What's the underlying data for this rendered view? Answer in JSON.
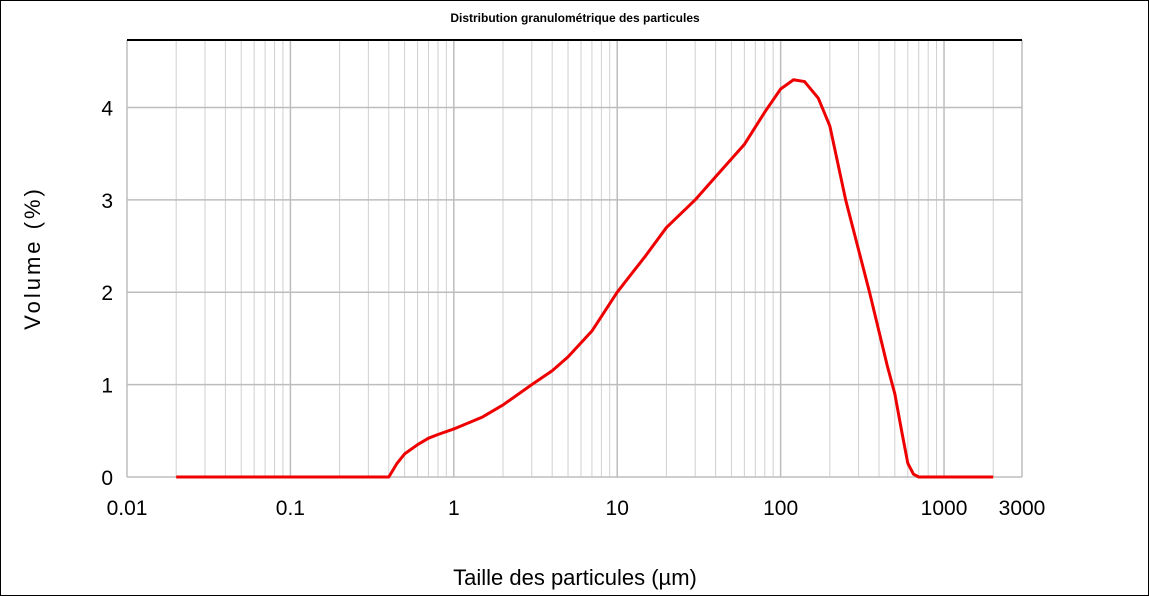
{
  "chart_data": {
    "type": "line",
    "title": "Distribution granulométrique des particules",
    "x_label": "Taille des particules (µm)",
    "y_label": "Volume (%)",
    "x_scale": "log",
    "grid": true,
    "xlim": [
      0.01,
      3000
    ],
    "xticks": [
      0.01,
      0.1,
      1,
      10,
      100,
      1000,
      3000
    ],
    "ylim": [
      0,
      4.73
    ],
    "yticks": [
      0,
      1,
      2,
      3,
      4
    ],
    "x": [
      0.02,
      0.4,
      0.45,
      0.5,
      0.6,
      0.7,
      0.8,
      1,
      1.5,
      2,
      3,
      4,
      5,
      7,
      10,
      15,
      20,
      30,
      40,
      60,
      80,
      100,
      120,
      140,
      170,
      200,
      250,
      350,
      450,
      500,
      550,
      600,
      650,
      700,
      1000,
      2000
    ],
    "series": [
      {
        "name": "Volume",
        "color": "#ee0000",
        "values": [
          0,
          0,
          0.15,
          0.25,
          0.35,
          0.42,
          0.46,
          0.52,
          0.65,
          0.78,
          1.0,
          1.15,
          1.3,
          1.58,
          2.0,
          2.4,
          2.7,
          3.0,
          3.25,
          3.6,
          3.95,
          4.2,
          4.3,
          4.28,
          4.1,
          3.8,
          3.0,
          2.0,
          1.2,
          0.9,
          0.5,
          0.15,
          0.03,
          0,
          0,
          0
        ]
      }
    ]
  }
}
